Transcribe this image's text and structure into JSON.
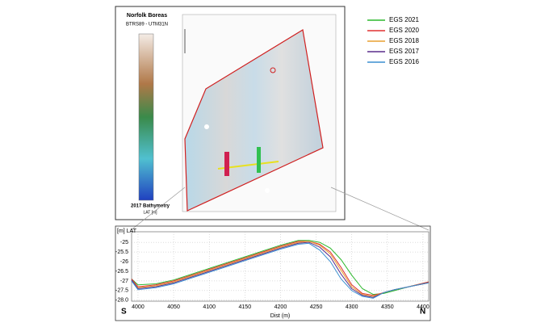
{
  "map": {
    "title": "Norfolk Boreas",
    "crs": "BTRS89 - UTM31N",
    "colorbar_title": "2017 Bathymetry",
    "colorbar_unit": "LAT [m]"
  },
  "chart_data": {
    "type": "line",
    "ylabel": "[m] LAT",
    "xlabel": "Dist (m)",
    "left_label": "S",
    "right_label": "N",
    "x": [
      3991,
      4000,
      4025,
      4050,
      4075,
      4100,
      4125,
      4150,
      4175,
      4200,
      4225,
      4240,
      4255,
      4270,
      4285,
      4300,
      4315,
      4330,
      4345,
      4360,
      4380,
      4408
    ],
    "series": [
      {
        "name": "EGS 2021",
        "color": "#2db82d",
        "values": [
          -26.9,
          -27.2,
          -27.15,
          -26.95,
          -26.65,
          -26.35,
          -26.05,
          -25.75,
          -25.45,
          -25.15,
          -24.9,
          -24.9,
          -25.0,
          -25.3,
          -25.9,
          -26.7,
          -27.4,
          -27.7,
          -27.65,
          -27.5,
          -27.3,
          -27.05
        ]
      },
      {
        "name": "EGS 2020",
        "color": "#e03030",
        "values": [
          -26.9,
          -27.3,
          -27.2,
          -27.0,
          -26.7,
          -26.4,
          -26.1,
          -25.8,
          -25.5,
          -25.2,
          -24.95,
          -24.95,
          -25.1,
          -25.5,
          -26.3,
          -27.2,
          -27.65,
          -27.75,
          -27.6,
          -27.45,
          -27.3,
          -27.05
        ]
      },
      {
        "name": "EGS 2018",
        "color": "#e8a030",
        "values": [
          -26.95,
          -27.35,
          -27.25,
          -27.05,
          -26.75,
          -26.45,
          -26.15,
          -25.85,
          -25.55,
          -25.25,
          -25.0,
          -24.95,
          -25.15,
          -25.6,
          -26.45,
          -27.3,
          -27.7,
          -27.8,
          -27.6,
          -27.45,
          -27.3,
          -27.1
        ]
      },
      {
        "name": "EGS 2017",
        "color": "#5a2d8c",
        "values": [
          -26.95,
          -27.4,
          -27.3,
          -27.1,
          -26.8,
          -26.5,
          -26.2,
          -25.9,
          -25.6,
          -25.3,
          -25.05,
          -25.0,
          -25.25,
          -25.75,
          -26.65,
          -27.4,
          -27.75,
          -27.85,
          -27.6,
          -27.45,
          -27.3,
          -27.1
        ]
      },
      {
        "name": "EGS 2016",
        "color": "#3a8fd0",
        "values": [
          -27.0,
          -27.45,
          -27.35,
          -27.15,
          -26.85,
          -26.55,
          -26.25,
          -25.95,
          -25.65,
          -25.35,
          -25.1,
          -25.05,
          -25.4,
          -26.0,
          -26.9,
          -27.5,
          -27.8,
          -27.9,
          -27.6,
          -27.45,
          -27.3,
          -27.1
        ]
      }
    ],
    "xlim": [
      3991,
      4408
    ],
    "xticks": [
      4000,
      4050,
      4100,
      4150,
      4200,
      4250,
      4300,
      4350,
      4400
    ],
    "ylim": [
      -28.05,
      -24.45
    ],
    "yticks": [
      -25,
      -25.5,
      -26,
      -26.5,
      -27,
      -27.5,
      {
        "value": -28,
        "label": "-28.0"
      }
    ],
    "grid": true
  }
}
